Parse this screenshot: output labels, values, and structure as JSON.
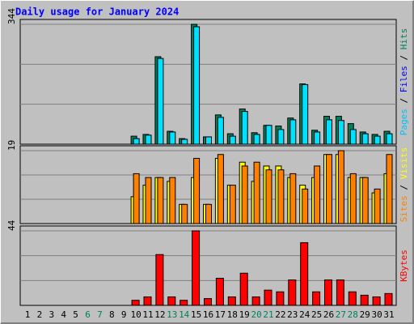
{
  "chart_data": [
    {
      "type": "bar",
      "title": "Daily usage for January 2024",
      "categories": [
        1,
        2,
        3,
        4,
        5,
        6,
        7,
        8,
        9,
        10,
        11,
        12,
        13,
        14,
        15,
        16,
        17,
        18,
        19,
        20,
        21,
        22,
        23,
        24,
        25,
        26,
        27,
        28,
        29,
        30,
        31
      ],
      "category_colors": [
        "#000000",
        "#000000",
        "#000000",
        "#000000",
        "#000000",
        "#00805c",
        "#00805c",
        "#000000",
        "#000000",
        "#000000",
        "#000000",
        "#000000",
        "#00805c",
        "#00805c",
        "#000000",
        "#000000",
        "#000000",
        "#000000",
        "#000000",
        "#00805c",
        "#00805c",
        "#000000",
        "#000000",
        "#000000",
        "#000000",
        "#000000",
        "#00805c",
        "#00805c",
        "#000000",
        "#000000",
        "#000000"
      ],
      "ylim": [
        0,
        344
      ],
      "yticks": [
        344
      ],
      "legend": [
        {
          "name": "Pages",
          "color": "#00c0ff"
        },
        {
          "name": "Files",
          "color": "#0000ff"
        },
        {
          "name": "Hits",
          "color": "#00805c"
        }
      ],
      "legend_separator": " / ",
      "series": [
        {
          "color": "#00805c",
          "values": [
            0,
            0,
            0,
            0,
            0,
            0,
            0,
            0,
            0,
            23,
            28,
            251,
            37,
            16,
            344,
            21,
            84,
            30,
            101,
            33,
            54,
            52,
            75,
            173,
            40,
            80,
            80,
            59,
            35,
            28,
            37
          ]
        },
        {
          "color": "#00e0ff",
          "values": [
            0,
            0,
            0,
            0,
            0,
            0,
            0,
            0,
            0,
            16,
            26,
            246,
            35,
            14,
            337,
            21,
            77,
            23,
            94,
            28,
            54,
            42,
            70,
            171,
            35,
            70,
            68,
            42,
            30,
            23,
            30
          ]
        }
      ]
    },
    {
      "type": "bar",
      "ylim": [
        0,
        19
      ],
      "yticks": [
        19
      ],
      "legend": [
        {
          "name": "Sites",
          "color": "#ff8000"
        },
        {
          "name": "Visits",
          "color": "#ffff00"
        }
      ],
      "legend_separator": " / ",
      "series": [
        {
          "color": "#ffff00",
          "values": [
            0,
            0,
            0,
            0,
            0,
            0,
            0,
            0,
            0,
            7,
            10,
            12,
            11,
            5,
            12,
            5,
            17,
            10,
            16,
            11,
            15,
            15,
            12,
            10,
            12,
            18,
            18,
            12,
            12,
            8,
            13
          ]
        },
        {
          "color": "#ff8000",
          "values": [
            0,
            0,
            0,
            0,
            0,
            0,
            0,
            0,
            0,
            13,
            12,
            12,
            12,
            5,
            17,
            5,
            18,
            10,
            15,
            16,
            14,
            14,
            13,
            9,
            15,
            18,
            19,
            13,
            12,
            9,
            18
          ]
        }
      ]
    },
    {
      "type": "bar",
      "ylim": [
        0,
        44
      ],
      "yticks": [
        44
      ],
      "legend": [
        {
          "name": "KBytes",
          "color": "#ff0000"
        }
      ],
      "series": [
        {
          "color": "#ff0000",
          "values": [
            0,
            0,
            0,
            0,
            0,
            0,
            0,
            0,
            0,
            3,
            5,
            30,
            5,
            3,
            44,
            4,
            16,
            5,
            19,
            5,
            9,
            8,
            15,
            37,
            8,
            15,
            15,
            8,
            6,
            5,
            7
          ]
        }
      ]
    }
  ]
}
